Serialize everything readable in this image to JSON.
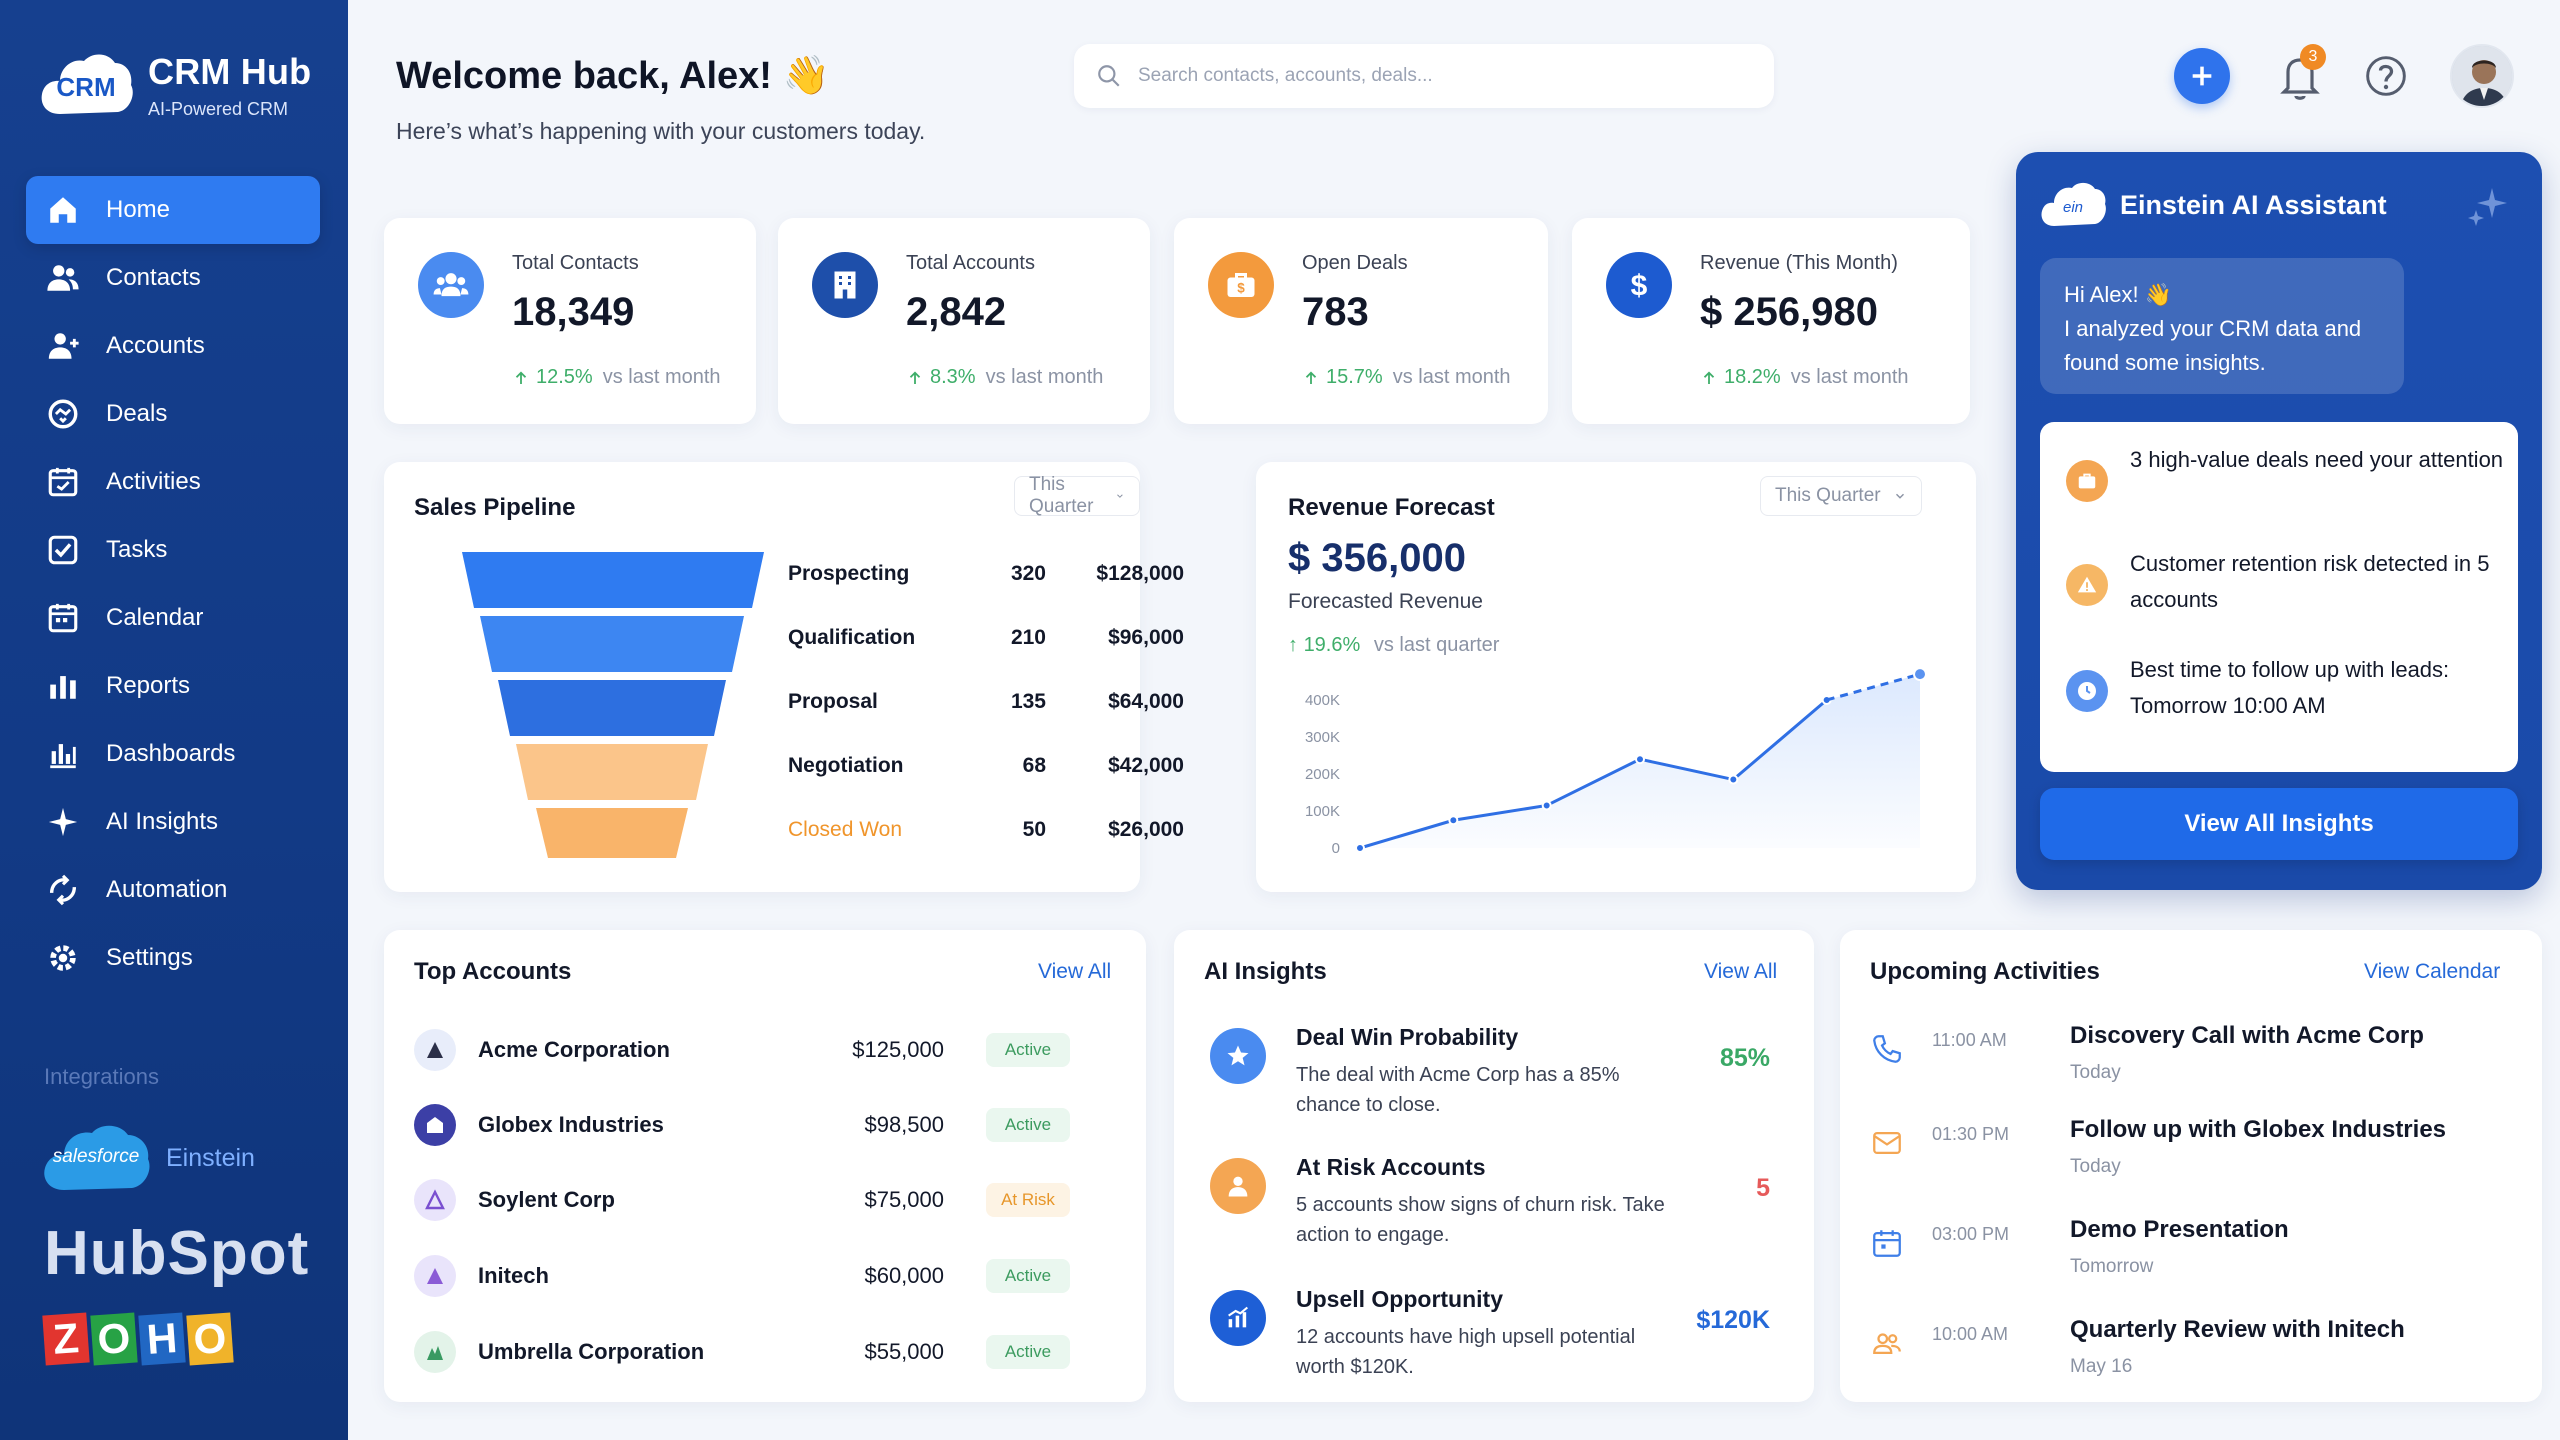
{
  "brand": {
    "logo_text": "CRM",
    "title": "CRM Hub",
    "subtitle": "AI-Powered CRM"
  },
  "sidebar": {
    "items": [
      {
        "label": "Home",
        "icon": "home-icon",
        "active": true
      },
      {
        "label": "Contacts",
        "icon": "contacts-icon"
      },
      {
        "label": "Accounts",
        "icon": "accounts-icon"
      },
      {
        "label": "Deals",
        "icon": "deals-icon"
      },
      {
        "label": "Activities",
        "icon": "activities-icon"
      },
      {
        "label": "Tasks",
        "icon": "tasks-icon"
      },
      {
        "label": "Calendar",
        "icon": "calendar-icon"
      },
      {
        "label": "Reports",
        "icon": "reports-icon"
      },
      {
        "label": "Dashboards",
        "icon": "dashboards-icon"
      },
      {
        "label": "AI Insights",
        "icon": "ai-sparkle-icon"
      },
      {
        "label": "Automation",
        "icon": "automation-icon"
      },
      {
        "label": "Settings",
        "icon": "gear-icon"
      }
    ],
    "integrations_label": "Integrations",
    "salesforce": "salesforce",
    "einstein": "Einstein",
    "hubspot": "HubSpot",
    "zoho": [
      "Z",
      "O",
      "H",
      "O"
    ]
  },
  "header": {
    "welcome": "Welcome back, Alex! 👋",
    "subtitle": "Here’s what’s happening with your customers today.",
    "search_placeholder": "Search contacts, accounts, deals...",
    "notification_count": "3"
  },
  "stats": [
    {
      "label": "Total Contacts",
      "value": "18,349",
      "change": "12.5%",
      "vs": "vs last month",
      "icon": "people-icon",
      "color": "#4a8bf0"
    },
    {
      "label": "Total Accounts",
      "value": "2,842",
      "change": "8.3%",
      "vs": "vs last month",
      "icon": "building-icon",
      "color": "#1e4faa"
    },
    {
      "label": "Open Deals",
      "value": "783",
      "change": "15.7%",
      "vs": "vs last month",
      "icon": "briefcase-icon",
      "color": "#f39a3d"
    },
    {
      "label": "Revenue (This Month)",
      "value": "$ 256,980",
      "change": "18.2%",
      "vs": "vs last month",
      "icon": "dollar-icon",
      "color": "#1d5bd0"
    }
  ],
  "pipeline": {
    "title": "Sales Pipeline",
    "period": "This Quarter",
    "stages": [
      {
        "name": "Prospecting",
        "count": "320",
        "amount": "$128,000",
        "color": "#2f7bf1"
      },
      {
        "name": "Qualification",
        "count": "210",
        "amount": "$96,000",
        "color": "#3d86f2"
      },
      {
        "name": "Proposal",
        "count": "135",
        "amount": "$64,000",
        "color": "#2d6fe0"
      },
      {
        "name": "Negotiation",
        "count": "68",
        "amount": "$42,000",
        "color": "#fbc58a"
      },
      {
        "name": "Closed Won",
        "count": "50",
        "amount": "$26,000",
        "color": "#f9b46a",
        "highlight": "#f0952b"
      }
    ]
  },
  "forecast": {
    "title": "Revenue Forecast",
    "period": "This Quarter",
    "value": "$ 356,000",
    "sub": "Forecasted Revenue",
    "change": "19.6%",
    "vs": "vs last quarter"
  },
  "chart_data": {
    "type": "line",
    "title": "",
    "xlabel": "",
    "ylabel": "",
    "y_ticks": [
      "0",
      "100K",
      "200K",
      "300K",
      "400K"
    ],
    "ylim": [
      0,
      400000
    ],
    "grid": false,
    "x": [
      1,
      2,
      3,
      4,
      5,
      6,
      7
    ],
    "series": [
      {
        "values": [
          0,
          75000,
          115000,
          240000,
          185000,
          400000,
          null
        ],
        "style": "solid"
      },
      {
        "values": [
          null,
          null,
          null,
          null,
          null,
          400000,
          470000
        ],
        "style": "dashed"
      }
    ]
  },
  "einstein": {
    "title": "Einstein AI Assistant",
    "greeting": "Hi Alex! 👋",
    "message": "I analyzed your CRM data and found some insights.",
    "items": [
      {
        "text": "3 high-value deals need your attention",
        "icon": "briefcase-icon",
        "color": "#f4a653"
      },
      {
        "text": "Customer retention risk detected in 5 accounts",
        "icon": "warning-icon",
        "color": "#f6b765"
      },
      {
        "text": "Best time to follow up with leads: Tomorrow 10:00 AM",
        "icon": "clock-icon",
        "color": "#5b93f0"
      }
    ],
    "button": "View All Insights"
  },
  "top_accounts": {
    "title": "Top Accounts",
    "view_all": "View All",
    "rows": [
      {
        "name": "Acme Corporation",
        "amount": "$125,000",
        "status": "Active"
      },
      {
        "name": "Globex Industries",
        "amount": "$98,500",
        "status": "Active"
      },
      {
        "name": "Soylent Corp",
        "amount": "$75,000",
        "status": "At Risk"
      },
      {
        "name": "Initech",
        "amount": "$60,000",
        "status": "Active"
      },
      {
        "name": "Umbrella Corporation",
        "amount": "$55,000",
        "status": "Active"
      }
    ]
  },
  "ai_insights": {
    "title": "AI Insights",
    "view_all": "View All",
    "rows": [
      {
        "title": "Deal Win Probability",
        "desc": "The deal with Acme Corp has a 85% chance to close.",
        "metric": "85%",
        "metric_color": "#3aa866",
        "icon": "star-icon",
        "color": "#4a8bf0"
      },
      {
        "title": "At Risk Accounts",
        "desc": "5 accounts show signs of churn risk. Take action to engage.",
        "metric": "5",
        "metric_color": "#e65a5a",
        "icon": "user-icon",
        "color": "#f4a653"
      },
      {
        "title": "Upsell Opportunity",
        "desc": "12 accounts have high upsell potential worth $120K.",
        "metric": "$120K",
        "metric_color": "#2569d8",
        "icon": "chart-up-icon",
        "color": "#1e5fd6"
      }
    ]
  },
  "activities": {
    "title": "Upcoming Activities",
    "view_all": "View Calendar",
    "rows": [
      {
        "time": "11:00 AM",
        "title": "Discovery Call with Acme Corp",
        "when": "Today",
        "icon": "phone-icon",
        "color": "#3f7fe8"
      },
      {
        "time": "01:30 PM",
        "title": "Follow up with Globex Industries",
        "when": "Today",
        "icon": "mail-icon",
        "color": "#f4a653"
      },
      {
        "time": "03:00 PM",
        "title": "Demo Presentation",
        "when": "Tomorrow",
        "icon": "calendar-icon",
        "color": "#3f7fe8"
      },
      {
        "time": "10:00 AM",
        "title": "Quarterly Review with Initech",
        "when": "May 16",
        "icon": "group-icon",
        "color": "#f4a653"
      }
    ]
  }
}
